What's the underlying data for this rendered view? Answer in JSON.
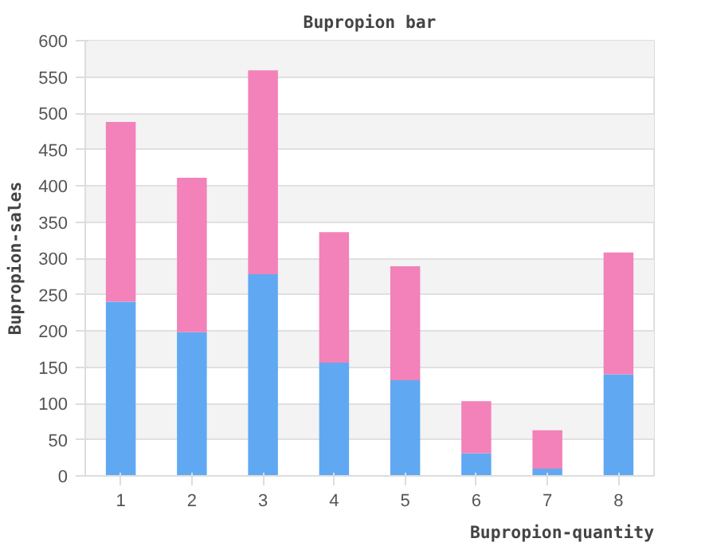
{
  "chart_data": {
    "type": "bar",
    "stacked": true,
    "title": "Bupropion bar",
    "xlabel": "Bupropion-quantity",
    "ylabel": "Bupropion-sales",
    "categories": [
      "1",
      "2",
      "3",
      "4",
      "5",
      "6",
      "7",
      "8"
    ],
    "series": [
      {
        "color": "#60a9f2",
        "values": [
          240,
          198,
          278,
          156,
          132,
          31,
          10,
          140
        ]
      },
      {
        "color": "#f282b9",
        "values": [
          248,
          213,
          281,
          180,
          157,
          72,
          53,
          168
        ]
      }
    ],
    "ylim": [
      0,
      600
    ],
    "yticks": [
      0,
      50,
      100,
      150,
      200,
      250,
      300,
      350,
      400,
      450,
      500,
      550,
      600
    ],
    "grid": "y"
  }
}
